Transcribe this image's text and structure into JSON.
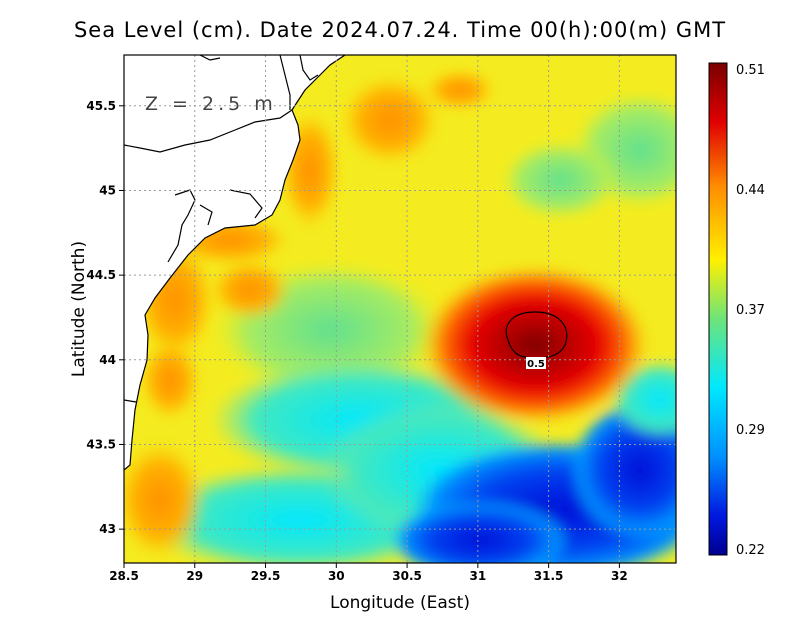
{
  "title": "Sea Level (cm). Date 2024.07.24. Time 00(h):00(m) GMT",
  "depth_label": "Z = 2.5 m",
  "axes": {
    "xlabel": "Longitude (East)",
    "ylabel": "Latitude (North)",
    "x_ticks": [
      "28.5",
      "29",
      "29.5",
      "30",
      "30.5",
      "31",
      "31.5",
      "32"
    ],
    "y_ticks": [
      "45.5",
      "45",
      "44.5",
      "44",
      "43.5",
      "43"
    ],
    "xlim": [
      28.5,
      32.4
    ],
    "ylim": [
      42.8,
      45.8
    ],
    "grid": true
  },
  "colorbar": {
    "ticks": [
      "0.51",
      "0.44",
      "0.37",
      "0.29",
      "0.22"
    ],
    "min": 0.22,
    "max": 0.51
  },
  "contour": {
    "level_label": "0.5",
    "center_lon": 31.43,
    "center_lat": 44.13
  },
  "colors": {
    "high": "#7a0000",
    "red": "#e60000",
    "orange": "#ff9900",
    "yellow": "#ffe600",
    "green": "#5fe08a",
    "cyan": "#00d8ff",
    "blue": "#0033ee",
    "low": "#000080",
    "land": "#ffffff",
    "coastline": "#000000"
  }
}
